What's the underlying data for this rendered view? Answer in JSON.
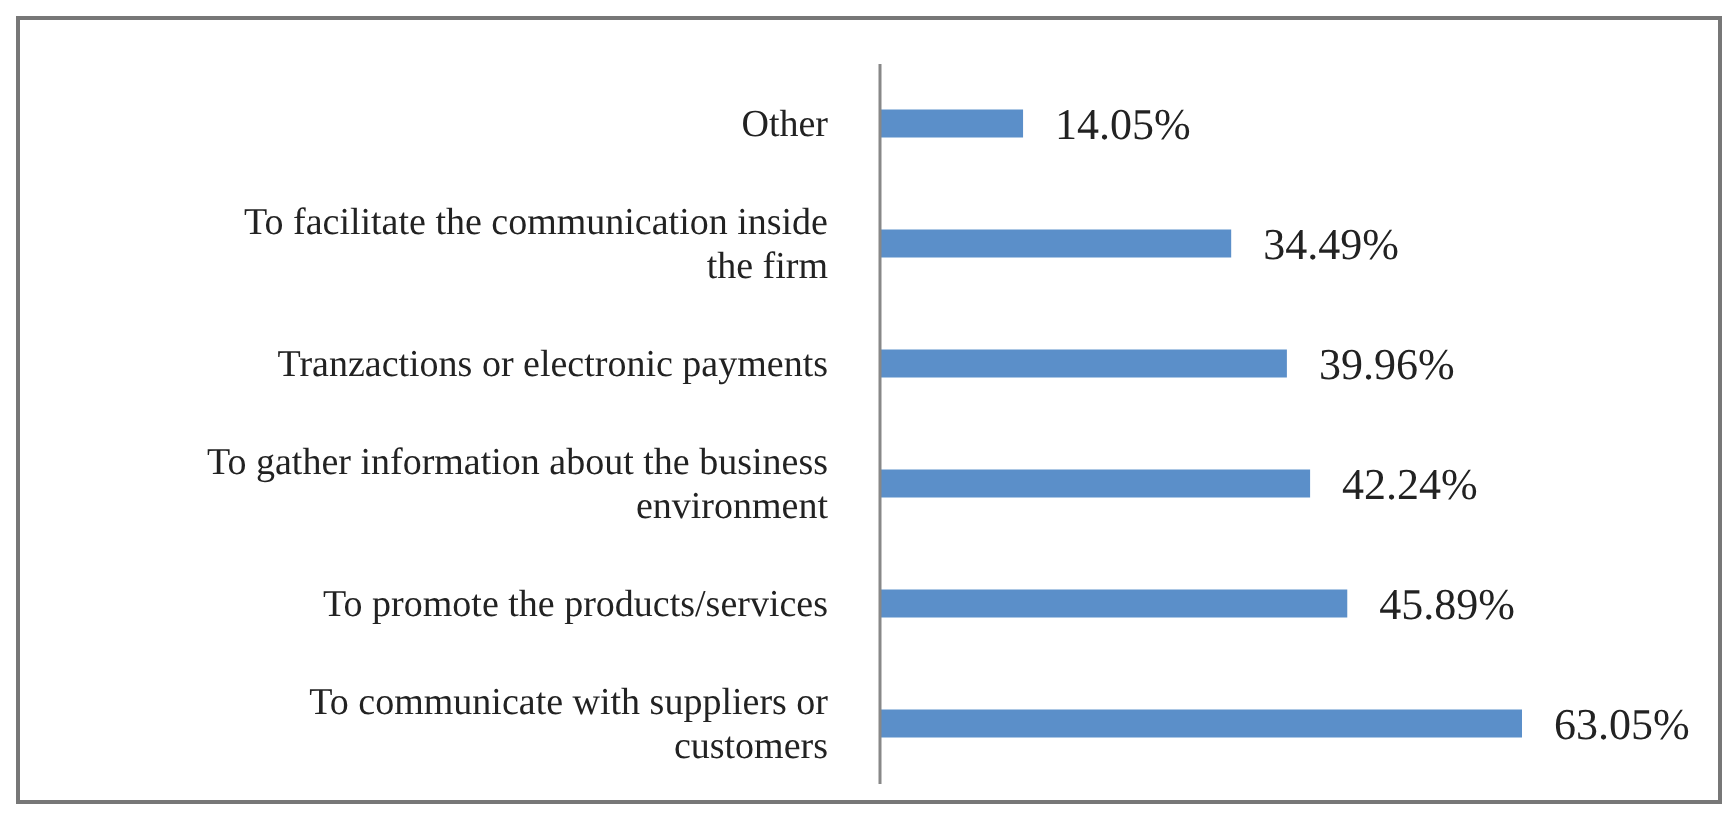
{
  "chart_data": {
    "type": "bar",
    "orientation": "horizontal",
    "categories": [
      "Other",
      "To facilitate the communication inside the firm",
      "Tranzactions or electronic payments",
      "To gather information about the business environment",
      "To promote the products/services",
      "To communicate with suppliers or customers"
    ],
    "values": [
      14.05,
      34.49,
      39.96,
      42.24,
      45.89,
      63.05
    ],
    "value_labels": [
      "14.05%",
      "34.49%",
      "39.96%",
      "42.24%",
      "45.89%",
      "63.05%"
    ],
    "color": "#5b8fc9"
  }
}
